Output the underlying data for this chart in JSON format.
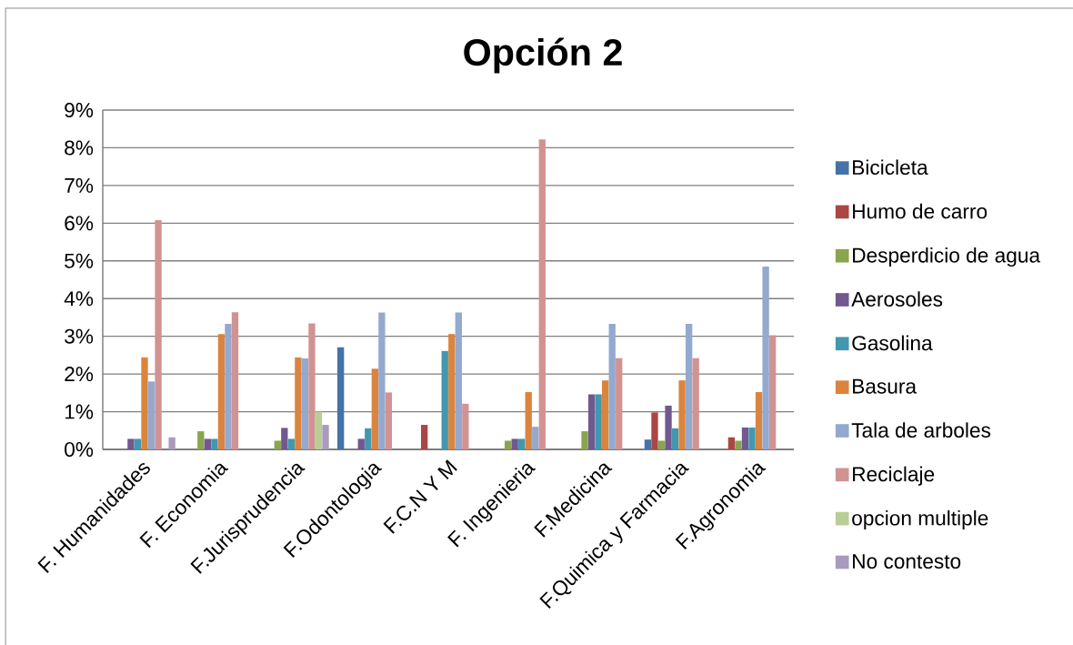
{
  "chart_data": {
    "type": "bar",
    "title": "Opción 2",
    "categories": [
      "F. Humanidades",
      "F. Economia",
      "F.Jurisprudencia",
      "F.Odontologia",
      "F.C.N Y M",
      "F. Ingenieria",
      "F.Medicina",
      "F.Quimica y Farmacia",
      "F.Agronomia"
    ],
    "series": [
      {
        "name": "Bicicleta",
        "color": "#4572a7",
        "values": [
          null,
          null,
          null,
          2.71,
          null,
          null,
          null,
          0.26,
          null
        ]
      },
      {
        "name": "Humo de carro",
        "color": "#aa4643",
        "values": [
          null,
          null,
          null,
          null,
          0.65,
          null,
          null,
          0.98,
          0.32
        ]
      },
      {
        "name": "Desperdicio de agua",
        "color": "#89a54e",
        "values": [
          null,
          0.48,
          0.23,
          null,
          null,
          0.23,
          0.48,
          0.23,
          0.23
        ]
      },
      {
        "name": "Aerosoles",
        "color": "#71588f",
        "values": [
          0.28,
          0.28,
          0.57,
          0.28,
          null,
          0.28,
          1.46,
          1.16,
          0.58
        ]
      },
      {
        "name": "Gasolina",
        "color": "#4198af",
        "values": [
          0.28,
          0.28,
          0.28,
          0.56,
          2.61,
          0.28,
          1.46,
          0.56,
          0.58
        ]
      },
      {
        "name": "Basura",
        "color": "#db843d",
        "values": [
          2.44,
          3.06,
          2.44,
          2.14,
          3.06,
          1.52,
          1.83,
          1.83,
          1.52
        ]
      },
      {
        "name": "Tala de arboles",
        "color": "#93a9cf",
        "values": [
          1.8,
          3.33,
          2.41,
          3.63,
          3.63,
          0.6,
          3.33,
          3.33,
          4.85
        ]
      },
      {
        "name": "Reciclaje",
        "color": "#d19392",
        "values": [
          6.08,
          3.64,
          3.34,
          1.51,
          1.21,
          8.22,
          2.42,
          2.42,
          3.03
        ]
      },
      {
        "name": "opcion multiple",
        "color": "#b9cd96",
        "values": [
          null,
          null,
          1.0,
          null,
          null,
          null,
          null,
          null,
          null
        ]
      },
      {
        "name": "No contesto",
        "color": "#a99bbd",
        "values": [
          0.32,
          null,
          0.65,
          null,
          null,
          null,
          null,
          null,
          null
        ]
      }
    ],
    "ylim": [
      0,
      9
    ],
    "yticks": [
      {
        "value": 0,
        "label": "0%"
      },
      {
        "value": 1,
        "label": "1%"
      },
      {
        "value": 2,
        "label": "2%"
      },
      {
        "value": 3,
        "label": "3%"
      },
      {
        "value": 4,
        "label": "4%"
      },
      {
        "value": 5,
        "label": "5%"
      },
      {
        "value": 6,
        "label": "6%"
      },
      {
        "value": 7,
        "label": "7%"
      },
      {
        "value": 8,
        "label": "8%"
      },
      {
        "value": 9,
        "label": "9%"
      }
    ],
    "grid": "y",
    "legend": "right"
  }
}
